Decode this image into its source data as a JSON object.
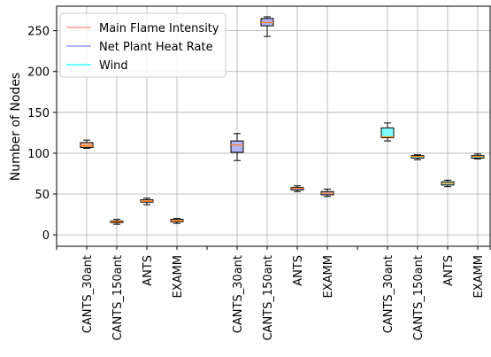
{
  "chart_data": {
    "type": "box",
    "ylabel": "Number of Nodes",
    "ylim": [
      -14,
      280
    ],
    "yticks": [
      0,
      50,
      100,
      150,
      200,
      250
    ],
    "grid": true,
    "legend_position": "top-left",
    "categories": [
      "CANTS_30ant",
      "CANTS_150ant",
      "ANTS",
      "EXAMM"
    ],
    "series": [
      {
        "name": "Main Flame Intensity",
        "color": "#f7a98c",
        "legend_color": "#ffb3b3",
        "boxes": [
          {
            "label": "CANTS_30ant",
            "whislo": 106,
            "q1": 107,
            "med": 109,
            "q3": 113,
            "whishi": 116
          },
          {
            "label": "CANTS_150ant",
            "whislo": 13,
            "q1": 15,
            "med": 16,
            "q3": 17,
            "whishi": 19
          },
          {
            "label": "ANTS",
            "whislo": 37,
            "q1": 40,
            "med": 41,
            "q3": 43,
            "whishi": 45
          },
          {
            "label": "EXAMM",
            "whislo": 14,
            "q1": 16,
            "med": 17,
            "q3": 19,
            "whishi": 20
          }
        ]
      },
      {
        "name": "Net Plant Heat Rate",
        "color": "#b3b3f7",
        "legend_color": "#b3b3ff",
        "boxes": [
          {
            "label": "CANTS_30ant",
            "whislo": 91,
            "q1": 101,
            "med": 110,
            "q3": 115,
            "whishi": 124
          },
          {
            "label": "CANTS_150ant",
            "whislo": 243,
            "q1": 256,
            "med": 260,
            "q3": 265,
            "whishi": 267
          },
          {
            "label": "ANTS",
            "whislo": 53,
            "q1": 55,
            "med": 57,
            "q3": 58,
            "whishi": 60
          },
          {
            "label": "EXAMM",
            "whislo": 47,
            "q1": 49,
            "med": 51,
            "q3": 53,
            "whishi": 56
          }
        ]
      },
      {
        "name": "Wind",
        "color": "#80ffff",
        "legend_color": "#66ffff",
        "boxes": [
          {
            "label": "CANTS_30ant",
            "whislo": 115,
            "q1": 119,
            "med": 120,
            "q3": 131,
            "whishi": 137
          },
          {
            "label": "CANTS_150ant",
            "whislo": 92,
            "q1": 94,
            "med": 96,
            "q3": 97,
            "whishi": 98
          },
          {
            "label": "ANTS",
            "whislo": 59,
            "q1": 61,
            "med": 63,
            "q3": 65,
            "whishi": 67
          },
          {
            "label": "EXAMM",
            "whislo": 93,
            "q1": 94,
            "med": 96,
            "q3": 97,
            "whishi": 99
          }
        ]
      }
    ],
    "median_color": "#ff7f0e"
  }
}
